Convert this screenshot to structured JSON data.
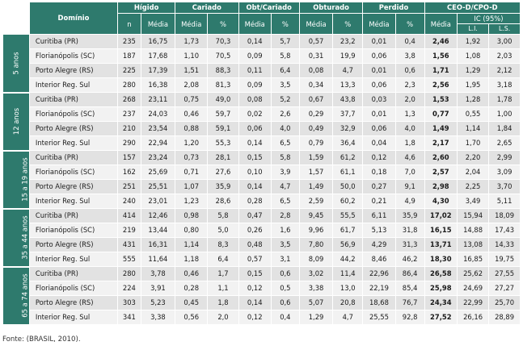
{
  "header": {
    "dominio": "Domínio",
    "groups": [
      "Hígido",
      "Cariado",
      "Obt/Cariado",
      "Obturado",
      "Perdido",
      "CEO-D/CPO-D"
    ],
    "sub": {
      "n": "n",
      "media": "Média",
      "pct": "%",
      "ic": "IC (95%)",
      "li": "L.I.",
      "ls": "L.S."
    }
  },
  "groups": [
    {
      "label": "5 anos",
      "rows": [
        {
          "dominio": "Curitiba (PR)",
          "values": [
            "235",
            "16,75",
            "1,73",
            "70,3",
            "0,14",
            "5,7",
            "0,57",
            "23,2",
            "0,01",
            "0,4",
            "2,46",
            "1,92",
            "3,00"
          ]
        },
        {
          "dominio": "Florianópolis (SC)",
          "values": [
            "187",
            "17,68",
            "1,10",
            "70,5",
            "0,09",
            "5,8",
            "0,31",
            "19,9",
            "0,06",
            "3,8",
            "1,56",
            "1,08",
            "2,03"
          ]
        },
        {
          "dominio": "Porto Alegre (RS)",
          "values": [
            "225",
            "17,39",
            "1,51",
            "88,3",
            "0,11",
            "6,4",
            "0,08",
            "4,7",
            "0,01",
            "0,6",
            "1,71",
            "1,29",
            "2,12"
          ]
        },
        {
          "dominio": "Interior Reg. Sul",
          "values": [
            "280",
            "16,38",
            "2,08",
            "81,3",
            "0,09",
            "3,5",
            "0,34",
            "13,3",
            "0,06",
            "2,3",
            "2,56",
            "1,95",
            "3,18"
          ]
        }
      ]
    },
    {
      "label": "12 anos",
      "rows": [
        {
          "dominio": "Curitiba (PR)",
          "values": [
            "268",
            "23,11",
            "0,75",
            "49,0",
            "0,08",
            "5,2",
            "0,67",
            "43,8",
            "0,03",
            "2,0",
            "1,53",
            "1,28",
            "1,78"
          ]
        },
        {
          "dominio": "Florianópolis (SC)",
          "values": [
            "237",
            "24,03",
            "0,46",
            "59,7",
            "0,02",
            "2,6",
            "0,29",
            "37,7",
            "0,01",
            "1,3",
            "0,77",
            "0,55",
            "1,00"
          ]
        },
        {
          "dominio": "Porto Alegre (RS)",
          "values": [
            "210",
            "23,54",
            "0,88",
            "59,1",
            "0,06",
            "4,0",
            "0,49",
            "32,9",
            "0,06",
            "4,0",
            "1,49",
            "1,14",
            "1,84"
          ]
        },
        {
          "dominio": "Interior Reg. Sul",
          "values": [
            "290",
            "22,94",
            "1,20",
            "55,3",
            "0,14",
            "6,5",
            "0,79",
            "36,4",
            "0,04",
            "1,8",
            "2,17",
            "1,70",
            "2,65"
          ]
        }
      ]
    },
    {
      "label": "15 a 19 anos",
      "rows": [
        {
          "dominio": "Curitiba (PR)",
          "values": [
            "157",
            "23,24",
            "0,73",
            "28,1",
            "0,15",
            "5,8",
            "1,59",
            "61,2",
            "0,12",
            "4,6",
            "2,60",
            "2,20",
            "2,99"
          ]
        },
        {
          "dominio": "Florianópolis (SC)",
          "values": [
            "162",
            "25,69",
            "0,71",
            "27,6",
            "0,10",
            "3,9",
            "1,57",
            "61,1",
            "0,18",
            "7,0",
            "2,57",
            "2,04",
            "3,09"
          ]
        },
        {
          "dominio": "Porto Alegre (RS)",
          "values": [
            "251",
            "25,51",
            "1,07",
            "35,9",
            "0,14",
            "4,7",
            "1,49",
            "50,0",
            "0,27",
            "9,1",
            "2,98",
            "2,25",
            "3,70"
          ]
        },
        {
          "dominio": "Interior Reg. Sul",
          "values": [
            "240",
            "23,01",
            "1,23",
            "28,6",
            "0,28",
            "6,5",
            "2,59",
            "60,2",
            "0,21",
            "4,9",
            "4,30",
            "3,49",
            "5,11"
          ]
        }
      ]
    },
    {
      "label": "35 a 44 anos",
      "rows": [
        {
          "dominio": "Curitiba (PR)",
          "values": [
            "414",
            "12,46",
            "0,98",
            "5,8",
            "0,47",
            "2,8",
            "9,45",
            "55,5",
            "6,11",
            "35,9",
            "17,02",
            "15,94",
            "18,09"
          ]
        },
        {
          "dominio": "Florianópolis (SC)",
          "values": [
            "219",
            "13,44",
            "0,80",
            "5,0",
            "0,26",
            "1,6",
            "9,96",
            "61,7",
            "5,13",
            "31,8",
            "16,15",
            "14,88",
            "17,43"
          ]
        },
        {
          "dominio": "Porto Alegre (RS)",
          "values": [
            "431",
            "16,31",
            "1,14",
            "8,3",
            "0,48",
            "3,5",
            "7,80",
            "56,9",
            "4,29",
            "31,3",
            "13,71",
            "13,08",
            "14,33"
          ]
        },
        {
          "dominio": "Interior Reg. Sul",
          "values": [
            "555",
            "11,64",
            "1,18",
            "6,4",
            "0,57",
            "3,1",
            "8,09",
            "44,2",
            "8,46",
            "46,2",
            "18,30",
            "16,85",
            "19,75"
          ]
        }
      ]
    },
    {
      "label": "65 a 74 anos",
      "rows": [
        {
          "dominio": "Curitiba (PR)",
          "values": [
            "280",
            "3,78",
            "0,46",
            "1,7",
            "0,15",
            "0,6",
            "3,02",
            "11,4",
            "22,96",
            "86,4",
            "26,58",
            "25,62",
            "27,55"
          ]
        },
        {
          "dominio": "Florianópolis (SC)",
          "values": [
            "224",
            "3,91",
            "0,28",
            "1,1",
            "0,12",
            "0,5",
            "3,38",
            "13,0",
            "22,19",
            "85,4",
            "25,98",
            "24,69",
            "27,27"
          ]
        },
        {
          "dominio": "Porto Alegre (RS)",
          "values": [
            "303",
            "5,23",
            "0,45",
            "1,8",
            "0,14",
            "0,6",
            "5,07",
            "20,8",
            "18,68",
            "76,7",
            "24,34",
            "22,99",
            "25,70"
          ]
        },
        {
          "dominio": "Interior Reg. Sul",
          "values": [
            "341",
            "3,38",
            "0,56",
            "2,0",
            "0,12",
            "0,4",
            "1,29",
            "4,7",
            "25,55",
            "92,8",
            "27,52",
            "26,16",
            "28,89"
          ]
        }
      ]
    }
  ],
  "fonte": "Fonte: (BRASIL, 2010)."
}
